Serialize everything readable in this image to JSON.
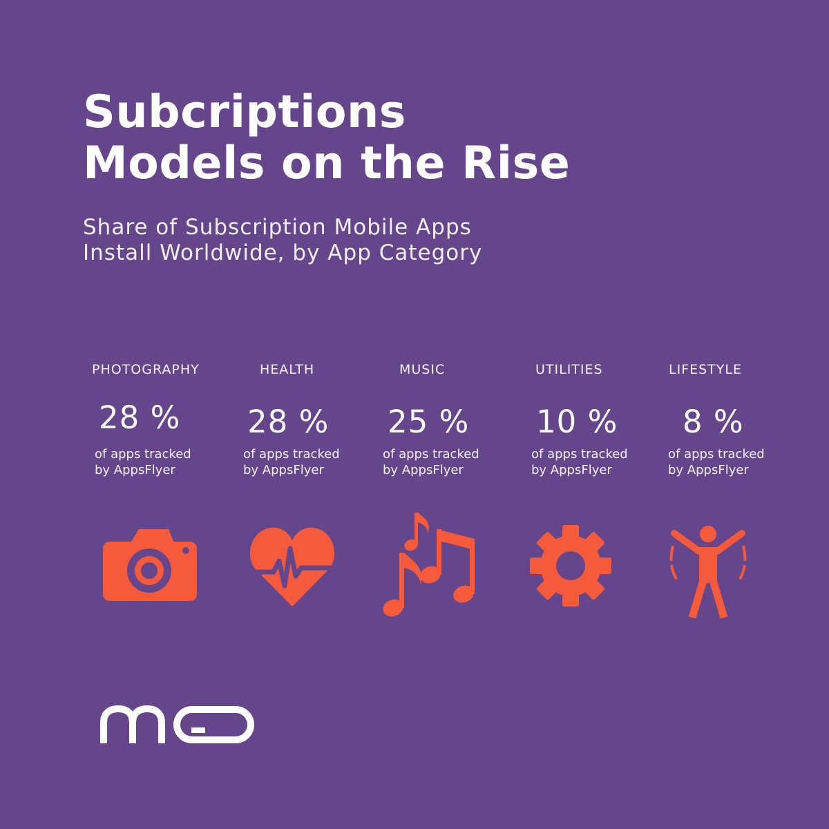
{
  "title": {
    "line1": "Subcriptions",
    "line2": "Models on the Rise"
  },
  "subtitle": {
    "line1": "Share of Subscription Mobile Apps",
    "line2": "Install Worldwide, by App Category"
  },
  "colors": {
    "background": "#66468b",
    "accent": "#f55a3c",
    "text": "#ffffff"
  },
  "categories": [
    {
      "name": "PHOTOGRAPHY",
      "value": "28 %",
      "percent": 28,
      "note1": "of apps tracked",
      "note2": "by AppsFlyer",
      "icon": "camera-icon"
    },
    {
      "name": "HEALTH",
      "value": "28 %",
      "percent": 28,
      "note1": "of apps tracked",
      "note2": "by AppsFlyer",
      "icon": "heart-pulse-icon"
    },
    {
      "name": "MUSIC",
      "value": "25 %",
      "percent": 25,
      "note1": "of apps tracked",
      "note2": "by AppsFlyer",
      "icon": "music-notes-icon"
    },
    {
      "name": "UTILITIES",
      "value": "10 %",
      "percent": 10,
      "note1": "of apps tracked",
      "note2": "by AppsFlyer",
      "icon": "gear-icon"
    },
    {
      "name": "LIFESTYLE",
      "value": "8 %",
      "percent": 8,
      "note1": "of apps tracked",
      "note2": "by AppsFlyer",
      "icon": "person-stretch-icon"
    }
  ],
  "logo": {
    "icon": "mo-logo"
  }
}
